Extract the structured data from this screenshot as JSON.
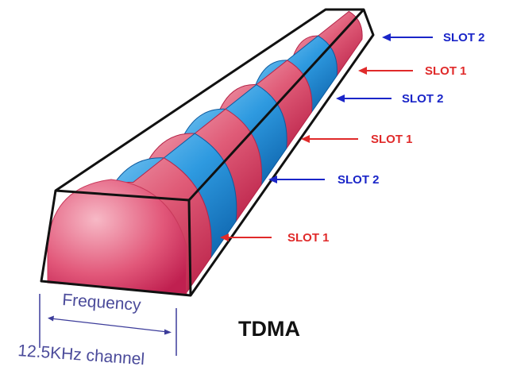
{
  "diagram": {
    "title": "TDMA",
    "frequency_label": "Frequency",
    "channel_label": "12.5KHz channel",
    "slot_colors": {
      "slot1": "#d43a55",
      "slot2": "#1a8fd6"
    },
    "label_colors": {
      "slot1": "#e02a2a",
      "slot2": "#1a25c8"
    },
    "annotation_color": "#4a4a9a",
    "slot_labels": [
      {
        "text": "SLOT 2",
        "slot": 2
      },
      {
        "text": "SLOT 1",
        "slot": 1
      },
      {
        "text": "SLOT 2",
        "slot": 2
      },
      {
        "text": "SLOT 1",
        "slot": 1
      },
      {
        "text": "SLOT 2",
        "slot": 2
      },
      {
        "text": "SLOT 1",
        "slot": 1
      }
    ]
  }
}
